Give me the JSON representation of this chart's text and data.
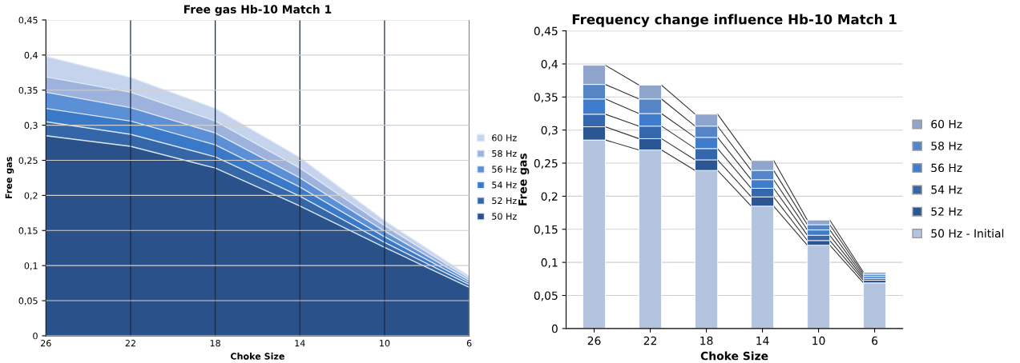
{
  "chart_data": [
    {
      "type": "area",
      "title": "Free gas Hb-10 Match 1",
      "xlabel": "Choke Size",
      "ylabel": "Free gas",
      "categories": [
        "26",
        "22",
        "18",
        "14",
        "10",
        "6"
      ],
      "ylim": [
        0,
        0.45
      ],
      "yticks": [
        0,
        {
          "value": 0.05,
          "label": "0,05"
        },
        {
          "value": 0.1,
          "label": "0,1"
        },
        {
          "value": 0.15,
          "label": "0,15"
        },
        {
          "value": 0.2,
          "label": "0,2"
        },
        {
          "value": 0.25,
          "label": "0,25"
        },
        {
          "value": 0.3,
          "label": "0,3"
        },
        {
          "value": 0.35,
          "label": "0,35"
        },
        {
          "value": 0.4,
          "label": "0,4"
        },
        {
          "value": 0.45,
          "label": "0,45"
        }
      ],
      "grid": true,
      "legend": "right",
      "series": [
        {
          "name": "60 Hz",
          "color": "#c5d3ec",
          "values": [
            0.398,
            0.368,
            0.324,
            0.254,
            0.164,
            0.085
          ]
        },
        {
          "name": "58 Hz",
          "color": "#9db3de",
          "values": [
            0.369,
            0.347,
            0.306,
            0.239,
            0.157,
            0.082
          ]
        },
        {
          "name": "56 Hz",
          "color": "#5b8fd6",
          "values": [
            0.347,
            0.325,
            0.289,
            0.225,
            0.149,
            0.079
          ]
        },
        {
          "name": "54 Hz",
          "color": "#3a78c8",
          "values": [
            0.324,
            0.306,
            0.272,
            0.212,
            0.141,
            0.076
          ]
        },
        {
          "name": "52 Hz",
          "color": "#3466a8",
          "values": [
            0.305,
            0.287,
            0.255,
            0.199,
            0.133,
            0.073
          ]
        },
        {
          "name": "50 Hz",
          "color": "#2a5189",
          "values": [
            0.285,
            0.27,
            0.239,
            0.185,
            0.126,
            0.069
          ]
        }
      ]
    },
    {
      "type": "bar",
      "stacked": true,
      "title": "Frequency change influence Hb-10 Match 1",
      "xlabel": "Choke Size",
      "ylabel": "Free gas",
      "categories": [
        "26",
        "22",
        "18",
        "14",
        "10",
        "6"
      ],
      "ylim": [
        0,
        0.45
      ],
      "yticks": [
        0,
        {
          "value": 0.05,
          "label": "0,05"
        },
        {
          "value": 0.1,
          "label": "0,1"
        },
        {
          "value": 0.15,
          "label": "0,15"
        },
        {
          "value": 0.2,
          "label": "0,2"
        },
        {
          "value": 0.25,
          "label": "0,25"
        },
        {
          "value": 0.3,
          "label": "0,3"
        },
        {
          "value": 0.35,
          "label": "0,35"
        },
        {
          "value": 0.4,
          "label": "0,4"
        },
        {
          "value": 0.45,
          "label": "0,45"
        }
      ],
      "grid": "y",
      "legend": "right",
      "series": [
        {
          "name": "50 Hz - Initial",
          "color": "#b4c3de",
          "values": [
            0.285,
            0.27,
            0.239,
            0.185,
            0.126,
            0.069
          ]
        },
        {
          "name": "52 Hz",
          "color": "#2c5593",
          "values": [
            0.02,
            0.017,
            0.016,
            0.014,
            0.007,
            0.004
          ]
        },
        {
          "name": "54 Hz",
          "color": "#3567ad",
          "values": [
            0.019,
            0.019,
            0.017,
            0.013,
            0.008,
            0.003
          ]
        },
        {
          "name": "56 Hz",
          "color": "#3f7dcc",
          "values": [
            0.023,
            0.019,
            0.017,
            0.013,
            0.008,
            0.003
          ]
        },
        {
          "name": "58 Hz",
          "color": "#5685c5",
          "values": [
            0.022,
            0.022,
            0.017,
            0.014,
            0.008,
            0.003
          ]
        },
        {
          "name": "60 Hz",
          "color": "#8fa5cc",
          "values": [
            0.029,
            0.021,
            0.018,
            0.015,
            0.007,
            0.003
          ]
        }
      ]
    }
  ]
}
